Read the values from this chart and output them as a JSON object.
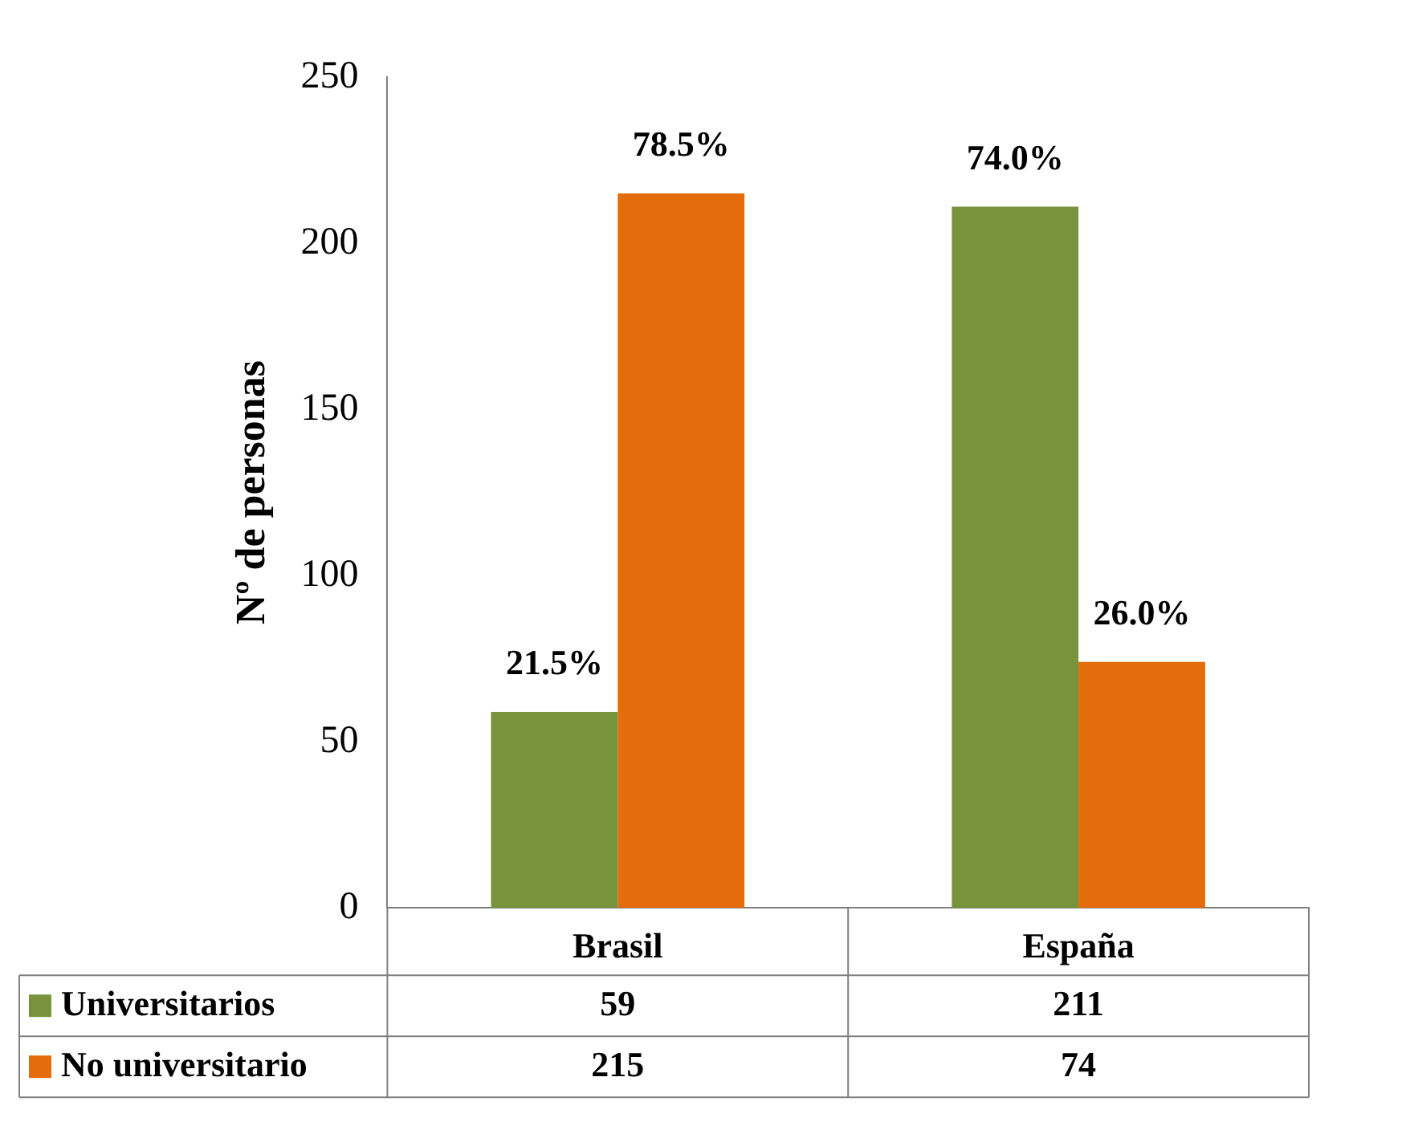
{
  "chart_data": {
    "type": "bar",
    "ylabel": "Nº de personas",
    "categories": [
      "Brasil",
      "España"
    ],
    "series": [
      {
        "name": "Universitarios",
        "color": "#77933c",
        "values": [
          59,
          211
        ]
      },
      {
        "name": "No universitario",
        "color": "#e46c0a",
        "values": [
          215,
          74
        ]
      }
    ],
    "annotations": [
      {
        "text": "21.5%",
        "x": "Brasil",
        "y": 59
      },
      {
        "text": "78.5%",
        "x": "Brasil",
        "y": 215
      },
      {
        "text": "74.0%",
        "x": "España",
        "y": 211
      },
      {
        "text": "26.0%",
        "x": "España",
        "y": 74
      }
    ],
    "ylim": [
      0,
      250
    ],
    "yticks": [
      0,
      50,
      100,
      150,
      200,
      250
    ],
    "grid": false,
    "legend": "bottom left",
    "data_labels": true
  }
}
